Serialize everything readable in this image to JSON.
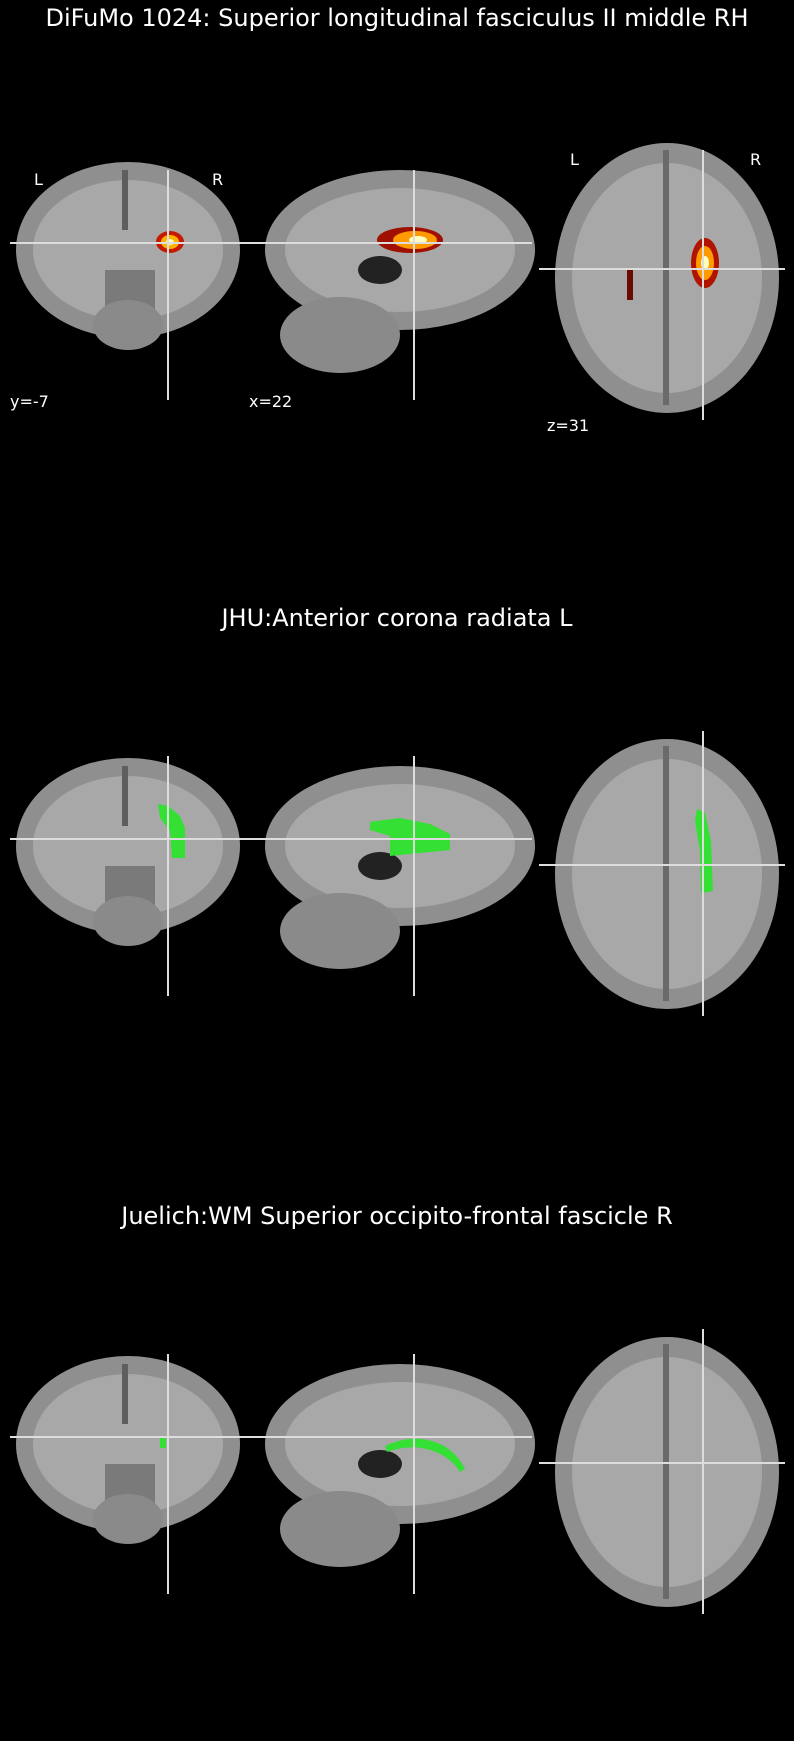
{
  "colors": {
    "background": "#000000",
    "brain_tissue": "#9a9a9a",
    "crosshair": "#ffffff",
    "atlas_overlay": "#33e033",
    "probability_map": "hot colormap (dark red to white)"
  },
  "panels": [
    {
      "title": "DiFuMo 1024: Superior longitudinal fasciculus II middle RH",
      "overlay": "heat",
      "views": {
        "coronal": {
          "label": "y=-7"
        },
        "sagittal": {
          "label": "x=22"
        },
        "axial": {
          "label": "z=31"
        }
      },
      "orientation": {
        "left": "L",
        "right": "R"
      }
    },
    {
      "title": "JHU:Anterior corona radiata L",
      "overlay": "green"
    },
    {
      "title": "Juelich:WM Superior occipito-frontal fascicle R",
      "overlay": "green"
    }
  ]
}
